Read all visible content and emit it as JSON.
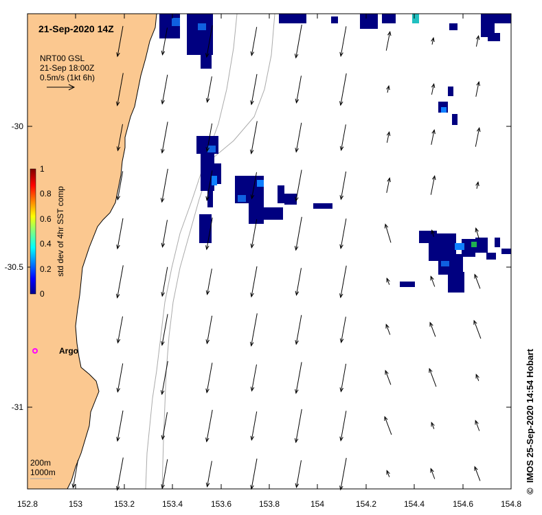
{
  "header": {
    "datetime": "21-Sep-2020 14Z"
  },
  "wind_legend": {
    "line1": "NRT00 GSL",
    "line2": "21-Sep 18:00Z",
    "line3": "0.5m/s (1kt 6h)"
  },
  "colorbar": {
    "label": "std dev of 4hr SST comp",
    "ticks": [
      "0",
      "0.2",
      "0.4",
      "0.6",
      "0.8",
      "1"
    ]
  },
  "argo": {
    "label": "Argo"
  },
  "isobaths": {
    "label1": "200m",
    "label2": "1000m"
  },
  "credit": {
    "text": "IMOS 25-Sep-2020 14:54 Hobart",
    "symbol": "©"
  },
  "axes": {
    "x_ticks": [
      "152.8",
      "153",
      "153.2",
      "153.4",
      "153.6",
      "153.8",
      "154",
      "154.2",
      "154.4",
      "154.6",
      "154.8"
    ],
    "y_ticks": [
      "-30",
      "-30.5",
      "-31"
    ]
  },
  "colors": {
    "land": "#fbc890",
    "coastline": "#000000",
    "isobath": "#aaaaaa",
    "argo": "#ff00ff"
  }
}
